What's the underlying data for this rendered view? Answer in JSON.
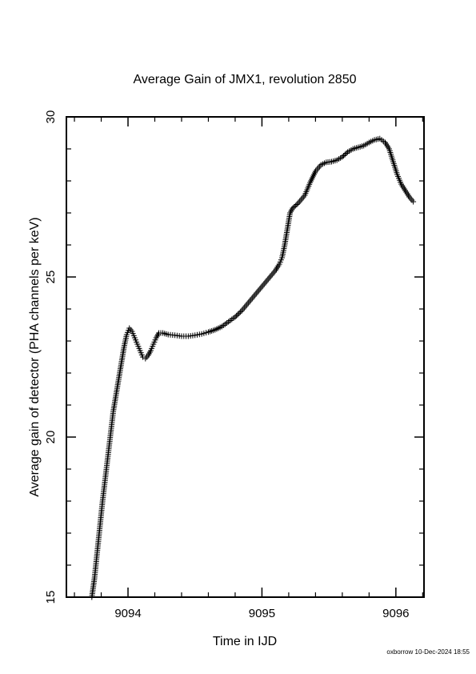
{
  "footer_text": "oxborrow 10-Dec-2024 18:55",
  "chart_data": {
    "type": "scatter",
    "title": "Average Gain of JMX1, revolution 2850",
    "xlabel": "Time in IJD",
    "ylabel": "Average gain of detector (PHA channels per keV)",
    "xlim": [
      9093.54,
      9096.21
    ],
    "ylim": [
      15,
      30
    ],
    "x_ticks": [
      9094,
      9095,
      9096
    ],
    "x_tick_labels": [
      "9094",
      "9095",
      "9096"
    ],
    "y_ticks": [
      15,
      20,
      25,
      30
    ],
    "y_tick_labels": [
      "15",
      "20",
      "25",
      "30"
    ],
    "x_minor_step": 0.2,
    "y_minor_step": 1,
    "marker": "+",
    "grid": false,
    "series": [
      {
        "color": "#000000",
        "points": [
          [
            9093.73,
            15.0
          ],
          [
            9093.75,
            15.6
          ],
          [
            9093.77,
            16.4
          ],
          [
            9093.79,
            17.2
          ],
          [
            9093.81,
            18.0
          ],
          [
            9093.83,
            18.7
          ],
          [
            9093.85,
            19.4
          ],
          [
            9093.87,
            20.1
          ],
          [
            9093.89,
            20.8
          ],
          [
            9093.91,
            21.3
          ],
          [
            9093.93,
            21.8
          ],
          [
            9093.95,
            22.3
          ],
          [
            9093.97,
            22.8
          ],
          [
            9093.99,
            23.2
          ],
          [
            9094.01,
            23.4
          ],
          [
            9094.03,
            23.3
          ],
          [
            9094.05,
            23.1
          ],
          [
            9094.07,
            22.9
          ],
          [
            9094.09,
            22.7
          ],
          [
            9094.11,
            22.5
          ],
          [
            9094.13,
            22.45
          ],
          [
            9094.15,
            22.55
          ],
          [
            9094.17,
            22.7
          ],
          [
            9094.19,
            22.9
          ],
          [
            9094.21,
            23.1
          ],
          [
            9094.23,
            23.25
          ],
          [
            9094.26,
            23.25
          ],
          [
            9094.3,
            23.2
          ],
          [
            9094.35,
            23.18
          ],
          [
            9094.4,
            23.15
          ],
          [
            9094.45,
            23.15
          ],
          [
            9094.5,
            23.18
          ],
          [
            9094.55,
            23.22
          ],
          [
            9094.6,
            23.28
          ],
          [
            9094.65,
            23.35
          ],
          [
            9094.7,
            23.45
          ],
          [
            9094.75,
            23.6
          ],
          [
            9094.8,
            23.75
          ],
          [
            9094.85,
            23.95
          ],
          [
            9094.9,
            24.2
          ],
          [
            9094.95,
            24.45
          ],
          [
            9095.0,
            24.7
          ],
          [
            9095.05,
            24.95
          ],
          [
            9095.1,
            25.2
          ],
          [
            9095.13,
            25.4
          ],
          [
            9095.15,
            25.6
          ],
          [
            9095.17,
            26.0
          ],
          [
            9095.19,
            26.5
          ],
          [
            9095.21,
            27.0
          ],
          [
            9095.23,
            27.15
          ],
          [
            9095.27,
            27.3
          ],
          [
            9095.32,
            27.55
          ],
          [
            9095.36,
            27.95
          ],
          [
            9095.4,
            28.3
          ],
          [
            9095.44,
            28.5
          ],
          [
            9095.48,
            28.58
          ],
          [
            9095.52,
            28.6
          ],
          [
            9095.56,
            28.65
          ],
          [
            9095.6,
            28.75
          ],
          [
            9095.64,
            28.9
          ],
          [
            9095.68,
            29.0
          ],
          [
            9095.72,
            29.05
          ],
          [
            9095.76,
            29.1
          ],
          [
            9095.8,
            29.2
          ],
          [
            9095.84,
            29.28
          ],
          [
            9095.88,
            29.32
          ],
          [
            9095.92,
            29.2
          ],
          [
            9095.95,
            29.0
          ],
          [
            9095.98,
            28.6
          ],
          [
            9096.01,
            28.2
          ],
          [
            9096.04,
            27.9
          ],
          [
            9096.07,
            27.7
          ],
          [
            9096.1,
            27.5
          ],
          [
            9096.13,
            27.35
          ]
        ]
      }
    ]
  }
}
